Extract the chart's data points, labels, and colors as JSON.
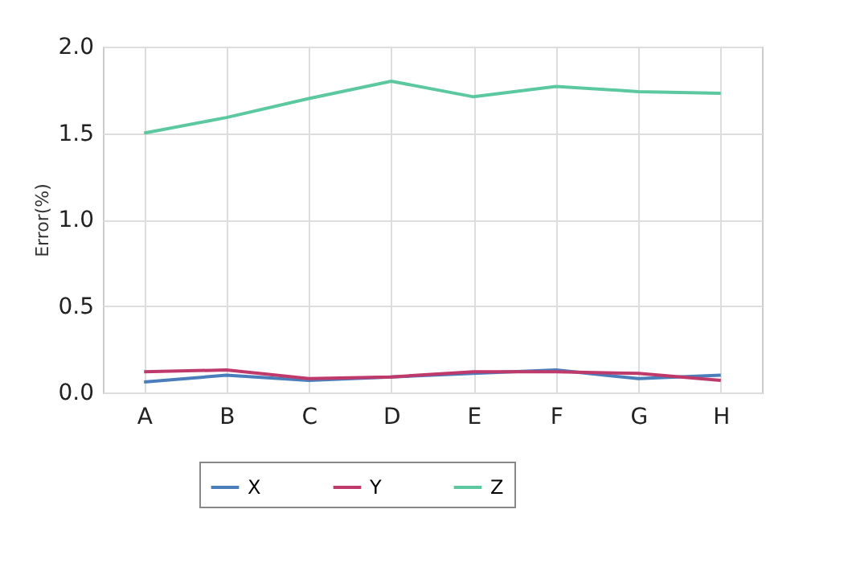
{
  "chart_data": {
    "type": "line",
    "ylabel": "Error(%)",
    "categories": [
      "A",
      "B",
      "C",
      "D",
      "E",
      "F",
      "G",
      "H"
    ],
    "series": [
      {
        "name": "X",
        "color": "#4a7ebb",
        "values": [
          0.06,
          0.1,
          0.07,
          0.09,
          0.11,
          0.13,
          0.08,
          0.1
        ]
      },
      {
        "name": "Y",
        "color": "#c0396b",
        "values": [
          0.12,
          0.13,
          0.08,
          0.09,
          0.12,
          0.12,
          0.11,
          0.07
        ]
      },
      {
        "name": "Z",
        "color": "#5cc8a0",
        "values": [
          1.5,
          1.59,
          1.7,
          1.8,
          1.71,
          1.77,
          1.74,
          1.73
        ]
      }
    ],
    "ylim": [
      0,
      2
    ],
    "yticks": [
      {
        "value": 0,
        "label": "0.0"
      },
      0.5,
      {
        "value": 1,
        "label": "1.0"
      },
      1.5,
      {
        "value": 2,
        "label": "2.0"
      }
    ],
    "grid": true,
    "legend": "bottom"
  }
}
